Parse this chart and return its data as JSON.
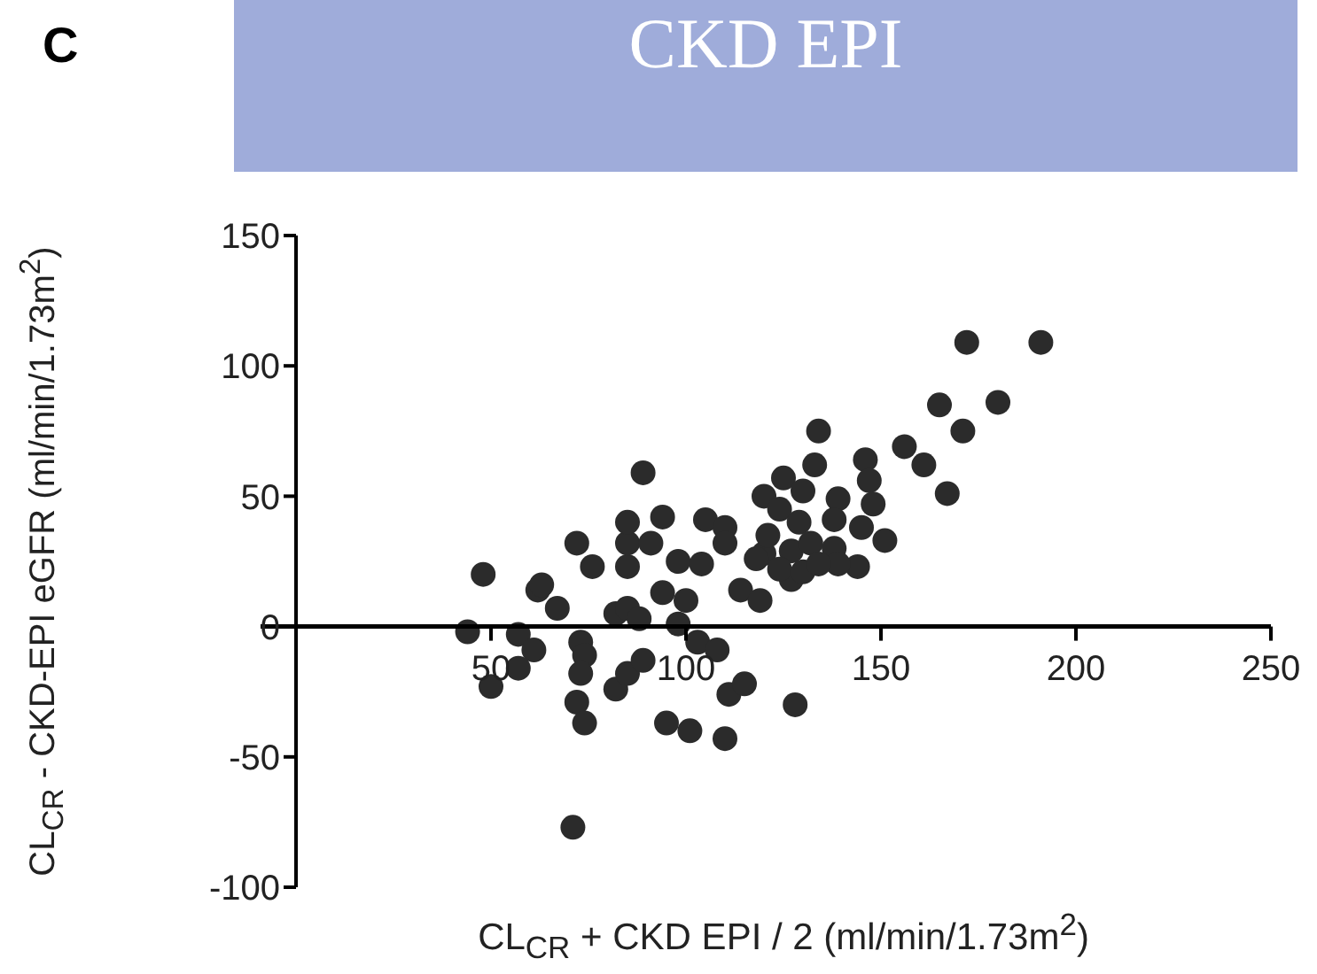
{
  "chart_data": {
    "type": "scatter",
    "title": "CKD EPI",
    "xlabel": "CL$_{CR}$ + CKD EPI / 2 (ml/min/1.73m$^{2}$)",
    "ylabel": "CL$_{CR}$ - CKD-EPI eGFR (ml/min/1.73m$^{2}$)",
    "annotations": [
      "C"
    ],
    "xlim": [
      0,
      250
    ],
    "xticks": [
      50,
      100,
      150,
      200,
      250
    ],
    "ylim": [
      -100,
      150
    ],
    "yticks": [
      -100,
      -50,
      0,
      50,
      100,
      150
    ],
    "grid": false,
    "legend": false,
    "marker": "circle",
    "series": [
      {
        "color": "#2b2b2b",
        "x": [
          48,
          44,
          62,
          67,
          72,
          76,
          85,
          57,
          61,
          57,
          50,
          73,
          74,
          73,
          72,
          74,
          71,
          82,
          85,
          88,
          82,
          85,
          89,
          94,
          98,
          104,
          100,
          98,
          103,
          108,
          95,
          101,
          110,
          111,
          115,
          128,
          114,
          119,
          85,
          91,
          120,
          127,
          144,
          172,
          191,
          180,
          165,
          171,
          134,
          156,
          161,
          167,
          146,
          147,
          133,
          125,
          120,
          130,
          89,
          85,
          94,
          105,
          110,
          139,
          148,
          138,
          145,
          151,
          124,
          129,
          121,
          118,
          127,
          132,
          138,
          139,
          124,
          130,
          134,
          110,
          63
        ],
        "values": [
          20,
          -2,
          14,
          7,
          32,
          23,
          23,
          -3,
          -9,
          -16,
          -23,
          -6,
          -11,
          -18,
          -29,
          -37,
          -77,
          5,
          7,
          3,
          -24,
          -18,
          -13,
          13,
          25,
          24,
          10,
          1,
          -6,
          -9,
          -37,
          -40,
          -43,
          -26,
          -22,
          -30,
          14,
          10,
          32,
          32,
          28,
          18,
          23,
          109,
          109,
          86,
          85,
          75,
          75,
          69,
          62,
          51,
          64,
          56,
          62,
          57,
          50,
          52,
          59,
          40,
          42,
          41,
          38,
          49,
          47,
          41,
          38,
          33,
          45,
          40,
          35,
          26,
          29,
          32,
          30,
          24,
          22,
          21,
          24,
          32,
          16
        ]
      }
    ]
  }
}
